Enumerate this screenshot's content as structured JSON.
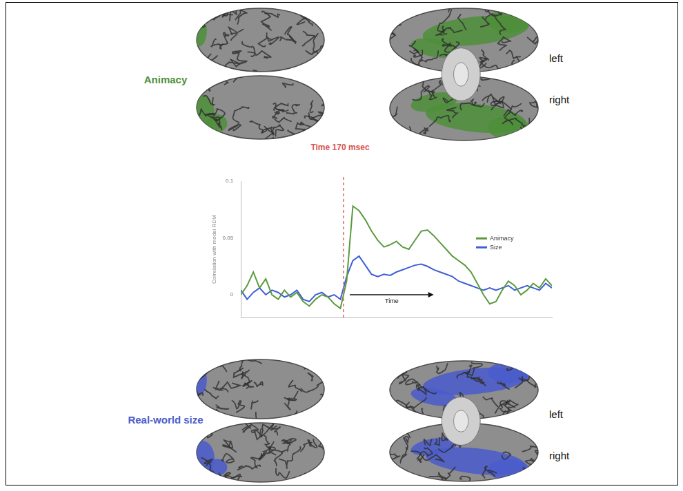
{
  "chart_data": {
    "type": "line",
    "title": "Time 170 msec",
    "ylabel": "Correlation with model RDM",
    "x": [
      0,
      2,
      4,
      6,
      8,
      10,
      12,
      14,
      16,
      18,
      20,
      22,
      24,
      26,
      28,
      30,
      32,
      34,
      36,
      38,
      40,
      42,
      44,
      46,
      48,
      50,
      52,
      54,
      56,
      58,
      60,
      62,
      64,
      66,
      68,
      70,
      72,
      74,
      76,
      78,
      80,
      82,
      84,
      86,
      88,
      90,
      92,
      94,
      96,
      98,
      100
    ],
    "series": [
      {
        "name": "Animacy",
        "color": "#5b9a3f",
        "values": [
          0.0,
          0.008,
          0.02,
          0.006,
          0.014,
          0.0,
          -0.004,
          0.004,
          -0.002,
          0.002,
          -0.006,
          -0.01,
          -0.004,
          0.0,
          -0.002,
          -0.008,
          -0.012,
          0.012,
          0.078,
          0.074,
          0.066,
          0.056,
          0.048,
          0.042,
          0.044,
          0.047,
          0.042,
          0.04,
          0.048,
          0.056,
          0.057,
          0.052,
          0.046,
          0.04,
          0.034,
          0.03,
          0.026,
          0.02,
          0.01,
          0.0,
          -0.008,
          -0.006,
          0.004,
          0.012,
          0.008,
          0.0,
          0.004,
          0.01,
          0.006,
          0.014,
          0.008
        ]
      },
      {
        "name": "Size",
        "color": "#3f5fd6",
        "values": [
          0.004,
          -0.004,
          0.002,
          0.006,
          0.0,
          0.004,
          0.002,
          -0.002,
          0.0,
          0.004,
          -0.004,
          -0.006,
          0.0,
          0.002,
          -0.002,
          0.0,
          -0.004,
          0.016,
          0.03,
          0.034,
          0.026,
          0.018,
          0.016,
          0.018,
          0.017,
          0.02,
          0.022,
          0.024,
          0.026,
          0.027,
          0.025,
          0.022,
          0.02,
          0.018,
          0.016,
          0.012,
          0.01,
          0.008,
          0.006,
          0.004,
          0.006,
          0.004,
          0.006,
          0.008,
          0.004,
          0.006,
          0.008,
          0.006,
          0.004,
          0.01,
          0.006
        ]
      }
    ],
    "xlim": [
      0,
      100
    ],
    "ylim": [
      -0.02,
      0.1
    ],
    "yticks": [
      0,
      0.05,
      0.1
    ],
    "vline_x": 33,
    "arrow": {
      "x": [
        35,
        62
      ],
      "y": 0,
      "label": "Time"
    },
    "grid": false,
    "legend": "right",
    "tick_labels": "y"
  },
  "brain_rows": [
    {
      "label": "Animacy",
      "color": "#4e8f3a",
      "hemisphere_labels": [
        "left",
        "right"
      ]
    },
    {
      "label": "Real-world size",
      "color": "#4a5ccc",
      "hemisphere_labels": [
        "left",
        "right"
      ]
    }
  ]
}
